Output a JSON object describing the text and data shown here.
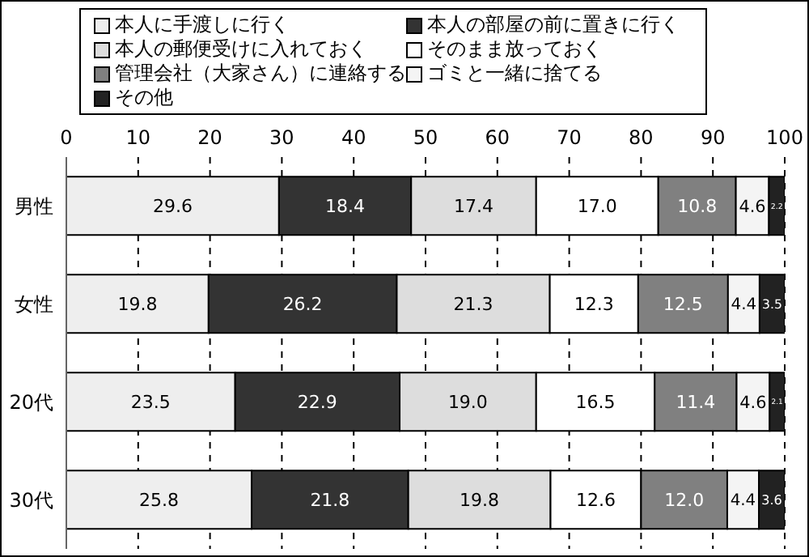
{
  "chart_data": {
    "type": "bar",
    "orientation": "horizontal",
    "stacked": true,
    "categories": [
      "男性",
      "女性",
      "20代",
      "30代"
    ],
    "series": [
      {
        "name": "本人に手渡しに行く",
        "color": "#eeeeee",
        "values": [
          29.6,
          19.8,
          23.5,
          25.8
        ],
        "value_labels": [
          "29.6",
          "19.8",
          "23.5",
          "25.8"
        ]
      },
      {
        "name": "本人の部屋の前に置きに行く",
        "color": "#333333",
        "values": [
          18.4,
          26.2,
          22.9,
          21.8
        ],
        "value_labels": [
          "18.4",
          "26.2",
          "22.9",
          "21.8"
        ]
      },
      {
        "name": "本人の郵便受けに入れておく",
        "color": "#dddddd",
        "values": [
          17.4,
          21.3,
          19.0,
          19.8
        ],
        "value_labels": [
          "17.4",
          "21.3",
          "19.0",
          "19.8"
        ]
      },
      {
        "name": "そのまま放っておく",
        "color": "#ffffff",
        "values": [
          17.0,
          12.3,
          16.5,
          12.6
        ],
        "value_labels": [
          "17.0",
          "12.3",
          "16.5",
          "12.6"
        ]
      },
      {
        "name": "管理会社（大家さん）に連絡する",
        "color": "#808080",
        "values": [
          10.8,
          12.5,
          11.4,
          12.0
        ],
        "value_labels": [
          "10.8",
          "12.5",
          "11.4",
          "12.0"
        ]
      },
      {
        "name": "ゴミと一緒に捨てる",
        "color": "#f4f4f4",
        "values": [
          4.6,
          4.4,
          4.6,
          4.4
        ],
        "value_labels": [
          "4.6",
          "4.4",
          "4.6",
          "4.4"
        ]
      },
      {
        "name": "その他",
        "color": "#222222",
        "values": [
          2.2,
          3.5,
          2.1,
          3.6
        ],
        "value_labels": [
          "2.2",
          "3.5",
          "2.1",
          "3.6"
        ]
      }
    ],
    "xlim": [
      0,
      100
    ],
    "xticks": [
      0,
      10,
      20,
      30,
      40,
      50,
      60,
      70,
      80,
      90,
      100
    ],
    "grid": "x",
    "legend": "top"
  }
}
